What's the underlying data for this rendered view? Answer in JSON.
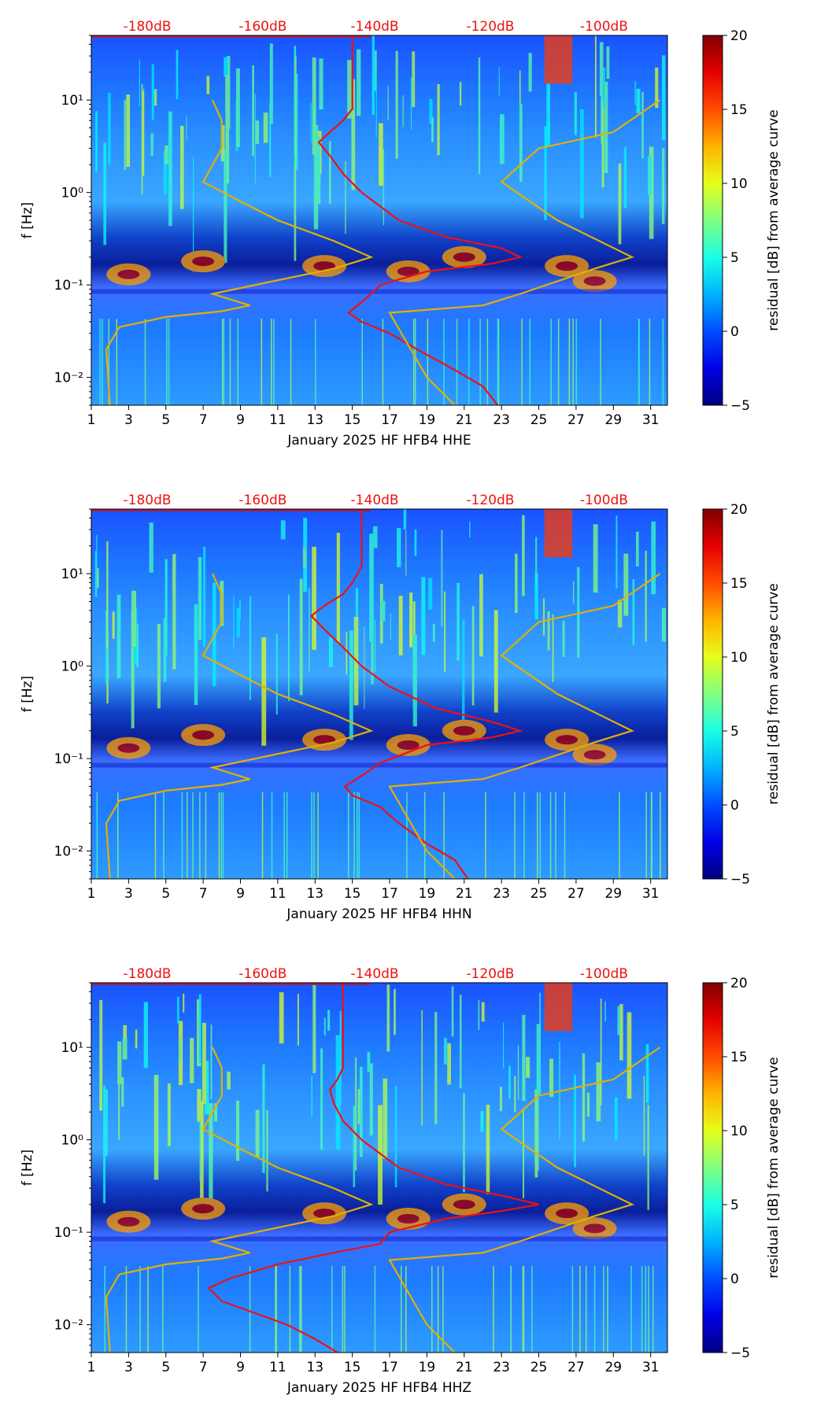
{
  "chart_data": [
    {
      "type": "heatmap",
      "title": "",
      "xlabel": "January 2025 HF HFB4  HHE",
      "ylabel": "f [Hz]",
      "xlim": [
        1,
        31.9
      ],
      "ylim": [
        0.005,
        50
      ],
      "y_scale": "log",
      "x_ticks": [
        "1",
        "3",
        "5",
        "7",
        "9",
        "11",
        "13",
        "15",
        "17",
        "19",
        "21",
        "23",
        "25",
        "27",
        "29",
        "31"
      ],
      "y_ticks": [
        {
          "value": 0.01,
          "label": "10⁻²"
        },
        {
          "value": 0.1,
          "label": "10⁻¹"
        },
        {
          "value": 1,
          "label": "10⁰"
        },
        {
          "value": 10,
          "label": "10¹"
        }
      ],
      "top_axis_labels": [
        {
          "x": 4,
          "label": "-180dB"
        },
        {
          "x": 10.2,
          "label": "-160dB"
        },
        {
          "x": 16.2,
          "label": "-140dB"
        },
        {
          "x": 22.4,
          "label": "-120dB"
        },
        {
          "x": 28.5,
          "label": "-100dB"
        }
      ],
      "colorbar": {
        "label": "residual [dB] from average curve",
        "range": [
          -5,
          20
        ],
        "ticks": [
          -5,
          0,
          5,
          10,
          15,
          20
        ]
      },
      "series": [
        {
          "color": "#ee1111",
          "points": [
            [
              22.8,
              0.005
            ],
            [
              22,
              0.008
            ],
            [
              20.5,
              0.012
            ],
            [
              18.5,
              0.02
            ],
            [
              17,
              0.03
            ],
            [
              15.5,
              0.04
            ],
            [
              14.8,
              0.05
            ],
            [
              15.5,
              0.065
            ],
            [
              16,
              0.08
            ],
            [
              16.5,
              0.1
            ],
            [
              19,
              0.14
            ],
            [
              22.5,
              0.17
            ],
            [
              24,
              0.2
            ],
            [
              23,
              0.25
            ],
            [
              20,
              0.33
            ],
            [
              17.5,
              0.5
            ],
            [
              15.5,
              1
            ],
            [
              14.5,
              1.6
            ],
            [
              13.8,
              2.5
            ],
            [
              13.2,
              3.5
            ],
            [
              13.8,
              4.5
            ],
            [
              14.5,
              6
            ],
            [
              15,
              8
            ],
            [
              15,
              12
            ],
            [
              15,
              20
            ],
            [
              15,
              30
            ],
            [
              15,
              48
            ]
          ]
        },
        {
          "color": "#e2b000",
          "points": [
            [
              2,
              0.005
            ],
            [
              1.9,
              0.01
            ],
            [
              1.8,
              0.02
            ],
            [
              2.5,
              0.035
            ],
            [
              5,
              0.045
            ],
            [
              8,
              0.052
            ],
            [
              9.5,
              0.06
            ],
            [
              7.5,
              0.08
            ],
            [
              14,
              0.15
            ],
            [
              16,
              0.2
            ],
            [
              14,
              0.3
            ],
            [
              11,
              0.5
            ],
            [
              9,
              0.8
            ],
            [
              7,
              1.3
            ],
            [
              8,
              3
            ],
            [
              8,
              6
            ],
            [
              7.5,
              10
            ]
          ]
        },
        {
          "color": "#e2b000",
          "points": [
            [
              20.5,
              0.005
            ],
            [
              19,
              0.01
            ],
            [
              17,
              0.05
            ],
            [
              22,
              0.06
            ],
            [
              24,
              0.08
            ],
            [
              28,
              0.15
            ],
            [
              30,
              0.2
            ],
            [
              26,
              0.5
            ],
            [
              23,
              1.3
            ],
            [
              25,
              3
            ],
            [
              29,
              4.5
            ],
            [
              31.5,
              10
            ]
          ]
        }
      ]
    },
    {
      "type": "heatmap",
      "title": "",
      "xlabel": "January 2025 HF HFB4  HHN",
      "ylabel": "f [Hz]",
      "xlim": [
        1,
        31.9
      ],
      "ylim": [
        0.005,
        50
      ],
      "y_scale": "log",
      "x_ticks": [
        "1",
        "3",
        "5",
        "7",
        "9",
        "11",
        "13",
        "15",
        "17",
        "19",
        "21",
        "23",
        "25",
        "27",
        "29",
        "31"
      ],
      "y_ticks": [
        {
          "value": 0.01,
          "label": "10⁻²"
        },
        {
          "value": 0.1,
          "label": "10⁻¹"
        },
        {
          "value": 1,
          "label": "10⁰"
        },
        {
          "value": 10,
          "label": "10¹"
        }
      ],
      "top_axis_labels": [
        {
          "x": 4,
          "label": "-180dB"
        },
        {
          "x": 10.2,
          "label": "-160dB"
        },
        {
          "x": 16.2,
          "label": "-140dB"
        },
        {
          "x": 22.4,
          "label": "-120dB"
        },
        {
          "x": 28.5,
          "label": "-100dB"
        }
      ],
      "colorbar": {
        "label": "residual [dB] from average curve",
        "range": [
          -5,
          20
        ],
        "ticks": [
          -5,
          0,
          5,
          10,
          15,
          20
        ]
      },
      "series": [
        {
          "color": "#ee1111",
          "points": [
            [
              21.2,
              0.005
            ],
            [
              20.5,
              0.008
            ],
            [
              19,
              0.012
            ],
            [
              17.5,
              0.02
            ],
            [
              16.5,
              0.03
            ],
            [
              15,
              0.04
            ],
            [
              14.6,
              0.05
            ],
            [
              15.5,
              0.065
            ],
            [
              16.5,
              0.09
            ],
            [
              19,
              0.14
            ],
            [
              22.5,
              0.17
            ],
            [
              24,
              0.2
            ],
            [
              22.5,
              0.25
            ],
            [
              19.5,
              0.35
            ],
            [
              17,
              0.6
            ],
            [
              15.5,
              1
            ],
            [
              14.5,
              1.6
            ],
            [
              13.5,
              2.5
            ],
            [
              12.8,
              3.5
            ],
            [
              13.5,
              4.5
            ],
            [
              14.5,
              6
            ],
            [
              15,
              8
            ],
            [
              15.5,
              12
            ],
            [
              15.5,
              20
            ],
            [
              15.5,
              30
            ],
            [
              15.5,
              48
            ]
          ]
        },
        {
          "color": "#e2b000",
          "points": [
            [
              2,
              0.005
            ],
            [
              1.9,
              0.01
            ],
            [
              1.8,
              0.02
            ],
            [
              2.5,
              0.035
            ],
            [
              5,
              0.045
            ],
            [
              8,
              0.052
            ],
            [
              9.5,
              0.06
            ],
            [
              7.5,
              0.08
            ],
            [
              14,
              0.15
            ],
            [
              16,
              0.2
            ],
            [
              14,
              0.3
            ],
            [
              11,
              0.5
            ],
            [
              9,
              0.8
            ],
            [
              7,
              1.3
            ],
            [
              8,
              3
            ],
            [
              8,
              6
            ],
            [
              7.5,
              10
            ]
          ]
        },
        {
          "color": "#e2b000",
          "points": [
            [
              20.5,
              0.005
            ],
            [
              19,
              0.01
            ],
            [
              17,
              0.05
            ],
            [
              22,
              0.06
            ],
            [
              24,
              0.08
            ],
            [
              28,
              0.15
            ],
            [
              30,
              0.2
            ],
            [
              26,
              0.5
            ],
            [
              23,
              1.3
            ],
            [
              25,
              3
            ],
            [
              29,
              4.5
            ],
            [
              31.5,
              10
            ]
          ]
        }
      ]
    },
    {
      "type": "heatmap",
      "title": "",
      "xlabel": "January 2025 HF HFB4  HHZ",
      "ylabel": "f [Hz]",
      "xlim": [
        1,
        31.9
      ],
      "ylim": [
        0.005,
        50
      ],
      "y_scale": "log",
      "x_ticks": [
        "1",
        "3",
        "5",
        "7",
        "9",
        "11",
        "13",
        "15",
        "17",
        "19",
        "21",
        "23",
        "25",
        "27",
        "29",
        "31"
      ],
      "y_ticks": [
        {
          "value": 0.01,
          "label": "10⁻²"
        },
        {
          "value": 0.1,
          "label": "10⁻¹"
        },
        {
          "value": 1,
          "label": "10⁰"
        },
        {
          "value": 10,
          "label": "10¹"
        }
      ],
      "top_axis_labels": [
        {
          "x": 4,
          "label": "-180dB"
        },
        {
          "x": 10.2,
          "label": "-160dB"
        },
        {
          "x": 16.2,
          "label": "-140dB"
        },
        {
          "x": 22.4,
          "label": "-120dB"
        },
        {
          "x": 28.5,
          "label": "-100dB"
        }
      ],
      "colorbar": {
        "label": "residual [dB] from average curve",
        "range": [
          -5,
          20
        ],
        "ticks": [
          -5,
          0,
          5,
          10,
          15,
          20
        ]
      },
      "series": [
        {
          "color": "#ee1111",
          "points": [
            [
              14.2,
              0.005
            ],
            [
              13,
              0.007
            ],
            [
              11.5,
              0.01
            ],
            [
              9.5,
              0.014
            ],
            [
              8,
              0.018
            ],
            [
              7.3,
              0.025
            ],
            [
              8.5,
              0.032
            ],
            [
              11,
              0.045
            ],
            [
              14,
              0.06
            ],
            [
              16.5,
              0.075
            ],
            [
              17,
              0.1
            ],
            [
              20,
              0.14
            ],
            [
              23,
              0.17
            ],
            [
              25,
              0.2
            ],
            [
              23,
              0.25
            ],
            [
              20,
              0.33
            ],
            [
              17.5,
              0.5
            ],
            [
              15.5,
              1
            ],
            [
              14.5,
              1.6
            ],
            [
              14,
              2.5
            ],
            [
              13.8,
              3.5
            ],
            [
              14.2,
              4.5
            ],
            [
              14.5,
              6
            ],
            [
              14.5,
              8
            ],
            [
              14.5,
              12
            ],
            [
              14.5,
              20
            ],
            [
              14.5,
              30
            ],
            [
              14.5,
              48
            ]
          ]
        },
        {
          "color": "#e2b000",
          "points": [
            [
              2,
              0.005
            ],
            [
              1.9,
              0.01
            ],
            [
              1.8,
              0.02
            ],
            [
              2.5,
              0.035
            ],
            [
              5,
              0.045
            ],
            [
              8,
              0.052
            ],
            [
              9.5,
              0.06
            ],
            [
              7.5,
              0.08
            ],
            [
              14,
              0.15
            ],
            [
              16,
              0.2
            ],
            [
              14,
              0.3
            ],
            [
              11,
              0.5
            ],
            [
              9,
              0.8
            ],
            [
              7,
              1.3
            ],
            [
              8,
              3
            ],
            [
              8,
              6
            ],
            [
              7.5,
              10
            ]
          ]
        },
        {
          "color": "#e2b000",
          "points": [
            [
              20.5,
              0.005
            ],
            [
              19,
              0.01
            ],
            [
              17,
              0.05
            ],
            [
              22,
              0.06
            ],
            [
              24,
              0.08
            ],
            [
              28,
              0.15
            ],
            [
              30,
              0.2
            ],
            [
              26,
              0.5
            ],
            [
              23,
              1.3
            ],
            [
              25,
              3
            ],
            [
              29,
              4.5
            ],
            [
              31.5,
              10
            ]
          ]
        }
      ]
    }
  ]
}
